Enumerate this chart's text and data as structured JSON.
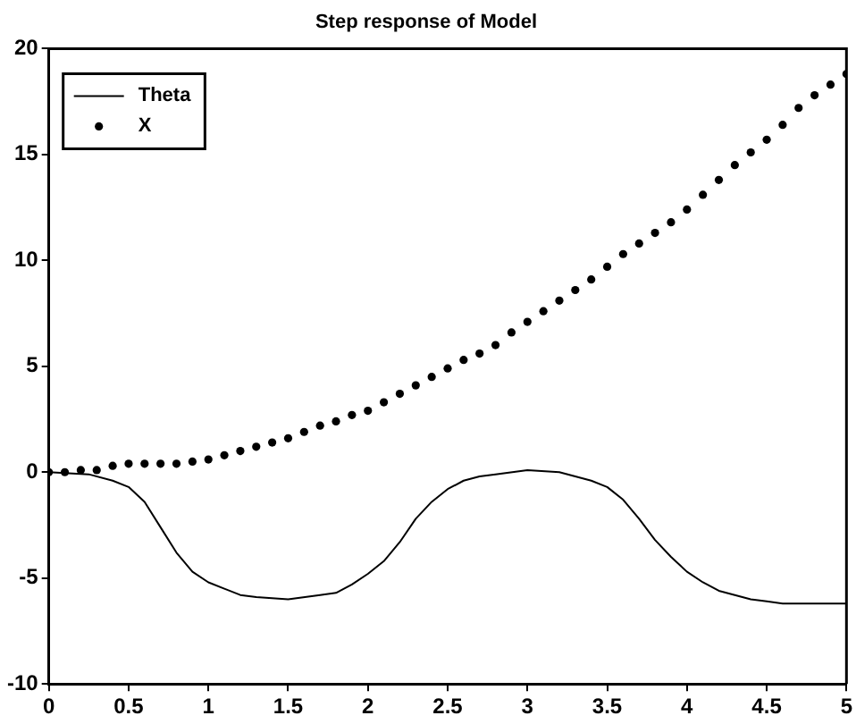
{
  "chart_data": {
    "type": "line",
    "title": "Step response of Model",
    "xlim": [
      0,
      5
    ],
    "xticks": [
      0,
      0.5,
      1,
      1.5,
      2,
      2.5,
      3,
      3.5,
      4,
      4.5,
      5
    ],
    "ylim": [
      -10,
      20
    ],
    "yticks": [
      -10,
      -5,
      0,
      5,
      10,
      15,
      20
    ],
    "grid": false,
    "legend": "top left",
    "series": [
      {
        "name": "Theta",
        "type": "line",
        "color": "#000000",
        "marker": "none",
        "line_style": "solid",
        "x": [
          0,
          0.25,
          0.4,
          0.5,
          0.6,
          0.7,
          0.8,
          0.9,
          1.0,
          1.1,
          1.2,
          1.3,
          1.5,
          1.7,
          1.8,
          1.9,
          2.0,
          2.1,
          2.2,
          2.3,
          2.4,
          2.5,
          2.6,
          2.7,
          2.8,
          3.0,
          3.2,
          3.3,
          3.4,
          3.5,
          3.6,
          3.7,
          3.8,
          3.9,
          4.0,
          4.1,
          4.2,
          4.3,
          4.4,
          4.5,
          4.6,
          5.0
        ],
        "values": [
          0,
          -0.1,
          -0.4,
          -0.7,
          -1.4,
          -2.6,
          -3.8,
          -4.7,
          -5.2,
          -5.5,
          -5.8,
          -5.9,
          -6.0,
          -5.8,
          -5.7,
          -5.3,
          -4.8,
          -4.2,
          -3.3,
          -2.2,
          -1.4,
          -0.8,
          -0.4,
          -0.2,
          -0.1,
          0.1,
          0,
          -0.2,
          -0.4,
          -0.7,
          -1.3,
          -2.2,
          -3.2,
          -4.0,
          -4.7,
          -5.2,
          -5.6,
          -5.8,
          -6.0,
          -6.1,
          -6.2,
          -6.2
        ]
      },
      {
        "name": "X",
        "type": "scatter",
        "color": "#000000",
        "marker": "circle",
        "x": [
          0,
          0.1,
          0.2,
          0.3,
          0.4,
          0.5,
          0.6,
          0.7,
          0.8,
          0.9,
          1.0,
          1.1,
          1.2,
          1.3,
          1.4,
          1.5,
          1.6,
          1.7,
          1.8,
          1.9,
          2.0,
          2.1,
          2.2,
          2.3,
          2.4,
          2.5,
          2.6,
          2.7,
          2.8,
          2.9,
          3.0,
          3.1,
          3.2,
          3.3,
          3.4,
          3.5,
          3.6,
          3.7,
          3.8,
          3.9,
          4.0,
          4.1,
          4.2,
          4.3,
          4.4,
          4.5,
          4.6,
          4.7,
          4.8,
          4.9,
          5.0
        ],
        "values": [
          0,
          0,
          0.1,
          0.1,
          0.3,
          0.4,
          0.4,
          0.4,
          0.4,
          0.5,
          0.6,
          0.8,
          1.0,
          1.2,
          1.4,
          1.6,
          1.9,
          2.2,
          2.4,
          2.7,
          2.9,
          3.3,
          3.7,
          4.1,
          4.5,
          4.9,
          5.3,
          5.6,
          6.0,
          6.6,
          7.1,
          7.6,
          8.1,
          8.6,
          9.1,
          9.7,
          10.3,
          10.8,
          11.3,
          11.8,
          12.4,
          13.1,
          13.8,
          14.5,
          15.1,
          15.7,
          16.4,
          17.2,
          17.8,
          18.3,
          18.8
        ]
      }
    ]
  }
}
